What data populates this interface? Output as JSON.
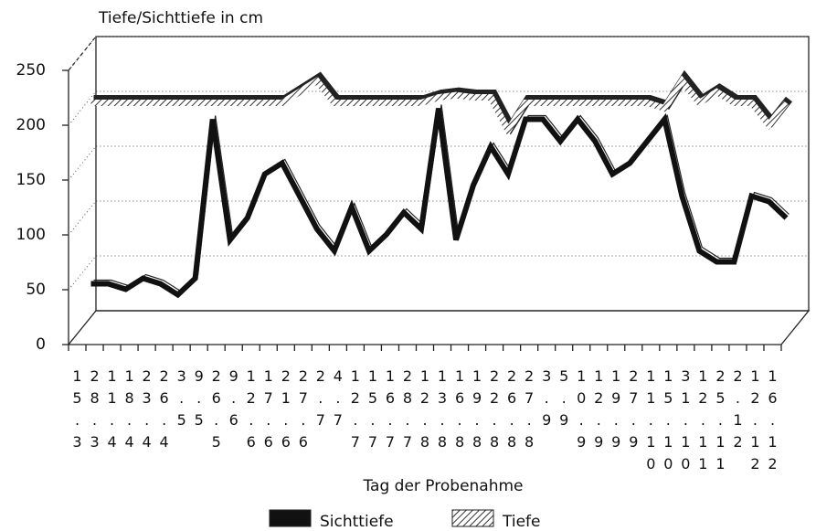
{
  "chart_data": {
    "type": "line",
    "y_label": "Tiefe/Sichttiefe in cm",
    "x_label": "Tag der Probenahme",
    "categories": [
      "15.3",
      "28.3",
      "11.4",
      "18.4",
      "23.4",
      "26.4",
      "3.5",
      "9.5",
      "26.5",
      "9.6",
      "12.6",
      "17.6",
      "21.6",
      "27.6",
      "2.7",
      "4.7",
      "12.7",
      "15.7",
      "16.7",
      "28.7",
      "12.8",
      "13.8",
      "16.8",
      "19.8",
      "22.8",
      "26.8",
      "27.8",
      "3.9",
      "5.9",
      "10.9",
      "12.9",
      "19.9",
      "27.9",
      "11.10",
      "15.10",
      "31.10",
      "12.11",
      "25.11",
      "2.12",
      "12.12",
      "16.12"
    ],
    "series": [
      {
        "name": "Sichttiefe",
        "color": "#111111",
        "values": [
          40,
          40,
          35,
          45,
          40,
          30,
          45,
          190,
          80,
          100,
          140,
          150,
          120,
          90,
          70,
          110,
          70,
          85,
          105,
          90,
          200,
          80,
          130,
          165,
          140,
          190,
          190,
          170,
          190,
          170,
          140,
          150,
          170,
          190,
          120,
          70,
          60,
          60,
          120,
          115,
          100
        ]
      },
      {
        "name": "Tiefe",
        "color": "#888888",
        "values": [
          205,
          205,
          205,
          205,
          205,
          205,
          205,
          205,
          205,
          205,
          205,
          205,
          215,
          225,
          205,
          205,
          205,
          205,
          205,
          205,
          210,
          212,
          210,
          210,
          180,
          205,
          205,
          205,
          205,
          205,
          205,
          205,
          205,
          200,
          225,
          205,
          215,
          205,
          205,
          185,
          205
        ]
      }
    ],
    "ylim": [
      0,
      250
    ],
    "yticks": [
      0,
      50,
      100,
      150,
      200,
      250
    ],
    "grid": true,
    "legend": "bottom"
  }
}
